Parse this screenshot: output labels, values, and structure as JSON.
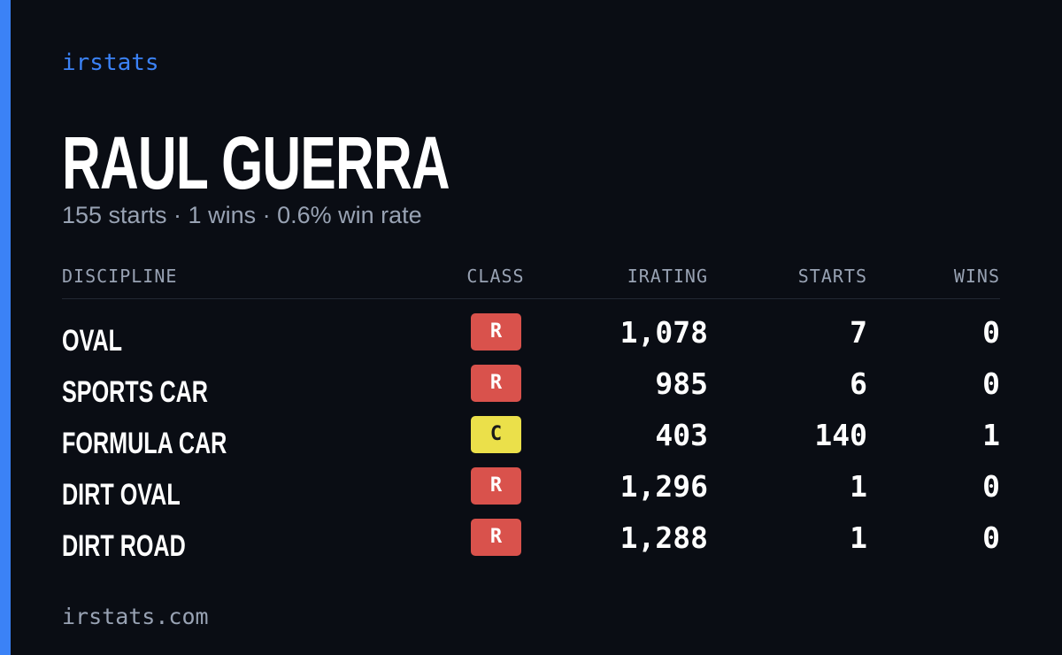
{
  "brand": "irstats",
  "driver": {
    "name": "RAUL GUERRA",
    "summary": "155 starts · 1 wins · 0.6% win rate"
  },
  "table": {
    "headers": [
      "DISCIPLINE",
      "CLASS",
      "IRATING",
      "STARTS",
      "WINS"
    ],
    "rows": [
      {
        "discipline": "OVAL",
        "class": "R",
        "class_color": "#d9524c",
        "class_text_color": "#ffffff",
        "irating": "1,078",
        "starts": "7",
        "wins": "0"
      },
      {
        "discipline": "SPORTS CAR",
        "class": "R",
        "class_color": "#d9524c",
        "class_text_color": "#ffffff",
        "irating": "985",
        "starts": "6",
        "wins": "0"
      },
      {
        "discipline": "FORMULA CAR",
        "class": "C",
        "class_color": "#ebe04a",
        "class_text_color": "#1a1a1a",
        "irating": "403",
        "starts": "140",
        "wins": "1"
      },
      {
        "discipline": "DIRT OVAL",
        "class": "R",
        "class_color": "#d9524c",
        "class_text_color": "#ffffff",
        "irating": "1,296",
        "starts": "1",
        "wins": "0"
      },
      {
        "discipline": "DIRT ROAD",
        "class": "R",
        "class_color": "#d9524c",
        "class_text_color": "#ffffff",
        "irating": "1,288",
        "starts": "1",
        "wins": "0"
      }
    ]
  },
  "footer": "irstats.com"
}
